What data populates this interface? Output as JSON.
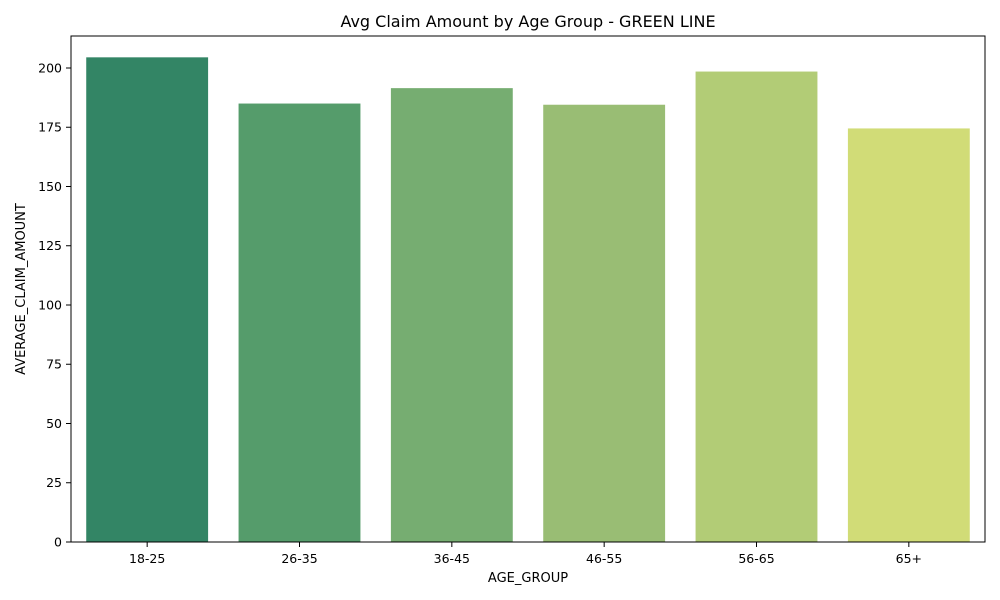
{
  "chart_data": {
    "type": "bar",
    "title": "Avg Claim Amount by Age Group - GREEN LINE",
    "xlabel": "AGE_GROUP",
    "ylabel": "AVERAGE_CLAIM_AMOUNT",
    "categories": [
      "18-25",
      "26-35",
      "36-45",
      "46-55",
      "56-65",
      "65+"
    ],
    "values": [
      204.5,
      185.0,
      191.5,
      184.5,
      198.5,
      174.5
    ],
    "colors": [
      "#338565",
      "#559c6b",
      "#76ad71",
      "#99bd74",
      "#b2cc76",
      "#d1dc77"
    ],
    "ylim": [
      0,
      213.5
    ],
    "yticks": [
      0,
      25,
      50,
      75,
      100,
      125,
      150,
      175,
      200
    ],
    "grid": false,
    "legend": "none"
  }
}
